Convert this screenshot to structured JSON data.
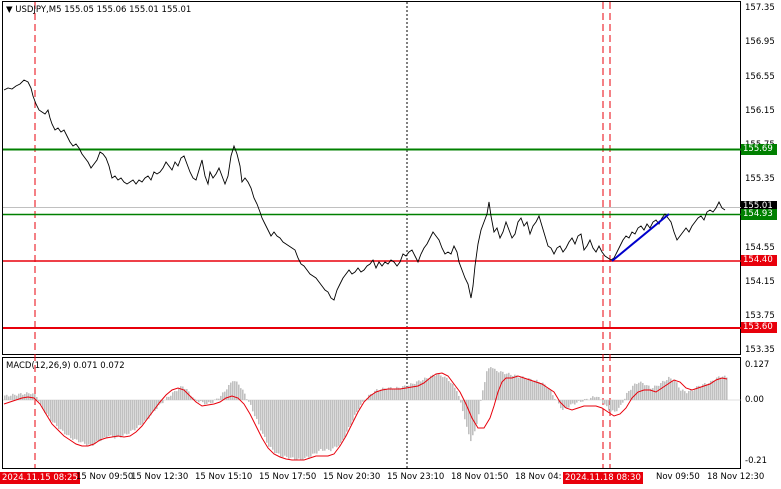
{
  "header": {
    "menu_arrow": "▼",
    "symbol": "USDJPY,M5",
    "ohlc": "155.05 155.06 155.01 155.01"
  },
  "price_axis": {
    "ticks": [
      "157.35",
      "156.95",
      "156.55",
      "156.15",
      "155.75",
      "155.35",
      "154.55",
      "154.15",
      "153.75",
      "153.35"
    ]
  },
  "macd": {
    "title": "MACD(12,26,9) 0.071 0.072",
    "ticks": [
      "0.127",
      "0.00",
      "-0.21"
    ]
  },
  "time_axis": {
    "ticks": [
      "15 Nov 09:50",
      "15 Nov 12:30",
      "15 Nov 15:10",
      "15 Nov 17:50",
      "15 Nov 20:30",
      "15 Nov 23:10",
      "18 Nov 01:50",
      "18 Nov 04:",
      "Nov 09:50",
      "18 Nov 12:30"
    ],
    "marker_left": "2024.11.15 08:25",
    "marker_right": "2024.11.18 08:30"
  },
  "levels": [
    {
      "name": "level-155-69",
      "price": "155.69",
      "color": "#008000"
    },
    {
      "name": "level-154-93",
      "price": "154.93",
      "color": "#008000"
    },
    {
      "name": "level-154-40",
      "price": "154.40",
      "color": "#e8000b"
    },
    {
      "name": "level-153-60",
      "price": "153.60",
      "color": "#e8000b"
    }
  ],
  "current_price": "155.01",
  "colors": {
    "price_line": "#000000",
    "green_level": "#008000",
    "red_level": "#e8000b",
    "trend_line": "#0000cc",
    "macd_hist": "#c0c0c0",
    "macd_signal": "#e8000b"
  }
}
